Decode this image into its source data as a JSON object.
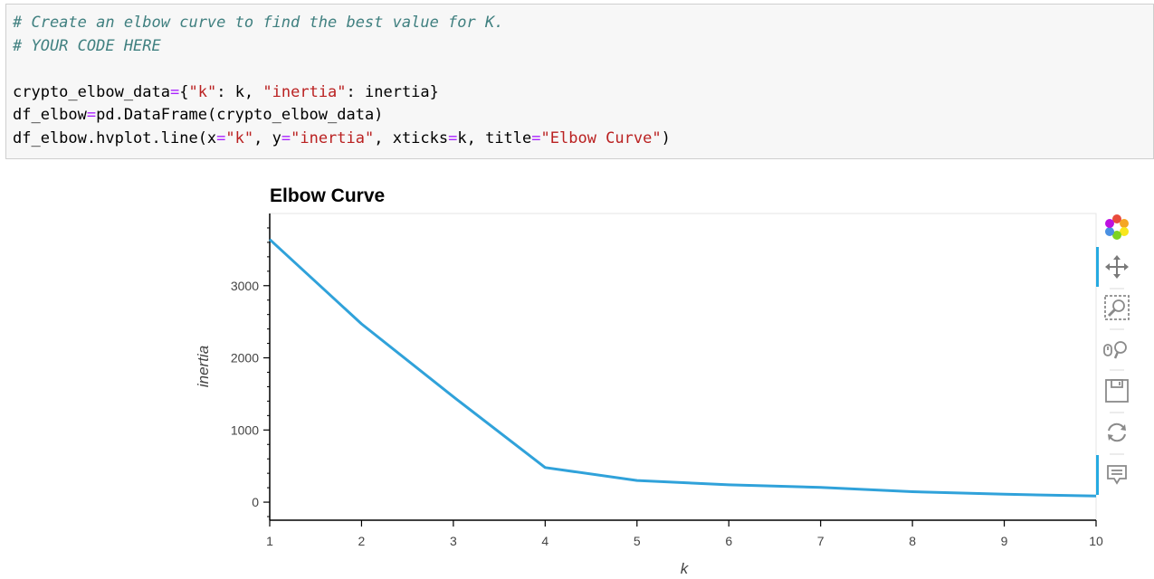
{
  "code_cell": {
    "lines": [
      [
        {
          "t": "# Create an elbow curve to find the best value for K.",
          "c": "comment"
        }
      ],
      [
        {
          "t": "# YOUR CODE HERE",
          "c": "comment"
        }
      ],
      [
        {
          "t": "",
          "c": "plain"
        }
      ],
      [
        {
          "t": "crypto_elbow_data",
          "c": "plain"
        },
        {
          "t": "=",
          "c": "op"
        },
        {
          "t": "{",
          "c": "plain"
        },
        {
          "t": "\"k\"",
          "c": "string"
        },
        {
          "t": ": k, ",
          "c": "plain"
        },
        {
          "t": "\"inertia\"",
          "c": "string"
        },
        {
          "t": ": inertia}",
          "c": "plain"
        }
      ],
      [
        {
          "t": "df_elbow",
          "c": "plain"
        },
        {
          "t": "=",
          "c": "op"
        },
        {
          "t": "pd.DataFrame(crypto_elbow_data)",
          "c": "plain"
        }
      ],
      [
        {
          "t": "df_elbow.hvplot.line(x",
          "c": "plain"
        },
        {
          "t": "=",
          "c": "op"
        },
        {
          "t": "\"k\"",
          "c": "string"
        },
        {
          "t": ", y",
          "c": "plain"
        },
        {
          "t": "=",
          "c": "op"
        },
        {
          "t": "\"inertia\"",
          "c": "string"
        },
        {
          "t": ", xticks",
          "c": "plain"
        },
        {
          "t": "=",
          "c": "op"
        },
        {
          "t": "k, title",
          "c": "plain"
        },
        {
          "t": "=",
          "c": "op"
        },
        {
          "t": "\"Elbow Curve\"",
          "c": "string"
        },
        {
          "t": ")",
          "c": "plain"
        }
      ]
    ],
    "colors": {
      "comment": "#408080",
      "string": "#ba2121",
      "op": "#aa22ff",
      "plain": "#000000",
      "background": "#f7f7f7"
    }
  },
  "chart_data": {
    "type": "line",
    "title": "Elbow Curve",
    "xlabel": "k",
    "ylabel": "inertia",
    "x": [
      1,
      2,
      3,
      4,
      5,
      6,
      7,
      8,
      9,
      10
    ],
    "series": [
      {
        "values": [
          3640,
          2470,
          1460,
          480,
          300,
          240,
          205,
          145,
          110,
          85
        ],
        "color": "#30a2da"
      }
    ],
    "xticks": [
      1,
      2,
      3,
      4,
      5,
      6,
      7,
      8,
      9,
      10
    ],
    "yticks": [
      0,
      1000,
      2000,
      3000
    ],
    "xlim": [
      1,
      10
    ],
    "ylim": [
      -250,
      4000
    ],
    "grid": false,
    "legend": "none"
  },
  "toolbar": {
    "tools": [
      {
        "name": "bokeh-logo-icon",
        "active": false
      },
      {
        "name": "pan-icon",
        "active": true
      },
      {
        "name": "box-zoom-icon",
        "active": false
      },
      {
        "name": "wheel-zoom-icon",
        "active": false
      },
      {
        "name": "save-icon",
        "active": false
      },
      {
        "name": "reset-icon",
        "active": false
      },
      {
        "name": "hover-icon",
        "active": true
      }
    ],
    "active_color": "#26aae1"
  }
}
